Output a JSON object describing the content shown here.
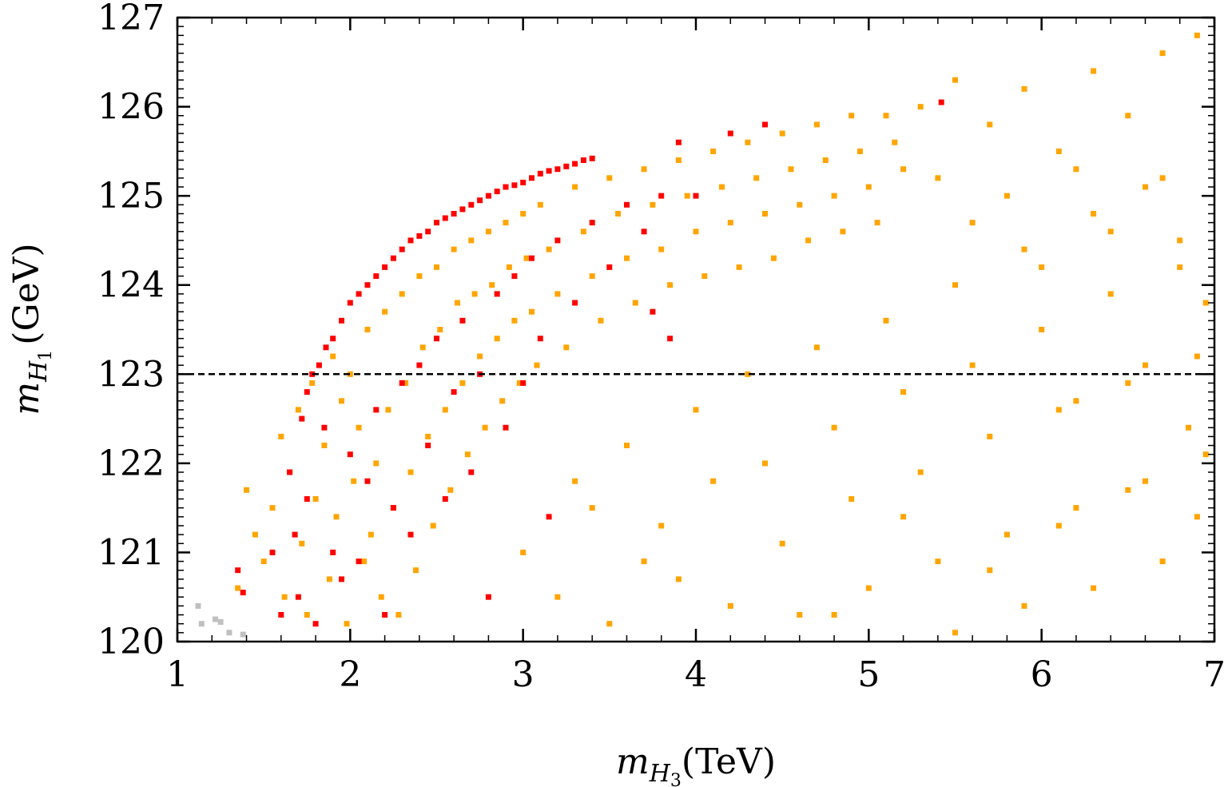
{
  "chart_data": {
    "type": "scatter",
    "title": "",
    "xlabel": {
      "symbol": "m",
      "subscript": "H",
      "subsub": "3",
      "unit": "(TeV)"
    },
    "ylabel": {
      "symbol": "m",
      "subscript": "H",
      "subsub": "1",
      "unit": "(GeV)"
    },
    "xlim": [
      1,
      7
    ],
    "ylim": [
      120,
      127
    ],
    "xticks": [
      "1",
      "2",
      "3",
      "4",
      "5",
      "6",
      "7"
    ],
    "yticks": [
      "120",
      "121",
      "122",
      "123",
      "124",
      "125",
      "126",
      "127"
    ],
    "grid": false,
    "legend": "none",
    "reference_line": {
      "y": 123,
      "style": "dashed",
      "color": "#000000"
    },
    "series": [
      {
        "color": "#c0c0c0",
        "points": [
          [
            1.12,
            120.4
          ],
          [
            1.22,
            120.25
          ],
          [
            1.25,
            120.22
          ],
          [
            1.3,
            120.1
          ],
          [
            1.38,
            120.08
          ],
          [
            1.14,
            120.2
          ]
        ]
      },
      {
        "color": "#ffa500",
        "points": [
          [
            1.35,
            120.6
          ],
          [
            1.4,
            121.7
          ],
          [
            1.45,
            121.2
          ],
          [
            1.5,
            120.9
          ],
          [
            1.55,
            121.5
          ],
          [
            1.6,
            122.3
          ],
          [
            1.62,
            120.5
          ],
          [
            1.65,
            121.9
          ],
          [
            1.7,
            122.6
          ],
          [
            1.72,
            121.1
          ],
          [
            1.75,
            120.3
          ],
          [
            1.78,
            122.9
          ],
          [
            1.8,
            121.6
          ],
          [
            1.85,
            122.2
          ],
          [
            1.88,
            120.7
          ],
          [
            1.9,
            123.2
          ],
          [
            1.92,
            121.4
          ],
          [
            1.95,
            122.7
          ],
          [
            1.98,
            120.2
          ],
          [
            2.0,
            123.0
          ],
          [
            2.02,
            121.8
          ],
          [
            2.05,
            122.4
          ],
          [
            2.08,
            120.9
          ],
          [
            2.1,
            123.5
          ],
          [
            2.12,
            121.2
          ],
          [
            2.15,
            122.0
          ],
          [
            2.18,
            120.5
          ],
          [
            2.2,
            123.7
          ],
          [
            2.22,
            122.6
          ],
          [
            2.25,
            121.5
          ],
          [
            2.28,
            120.3
          ],
          [
            2.3,
            123.9
          ],
          [
            2.32,
            122.9
          ],
          [
            2.35,
            121.9
          ],
          [
            2.38,
            120.8
          ],
          [
            2.4,
            124.1
          ],
          [
            2.42,
            123.3
          ],
          [
            2.45,
            122.3
          ],
          [
            2.48,
            121.3
          ],
          [
            2.5,
            124.2
          ],
          [
            2.52,
            123.5
          ],
          [
            2.55,
            122.6
          ],
          [
            2.58,
            121.7
          ],
          [
            2.6,
            124.4
          ],
          [
            2.62,
            123.8
          ],
          [
            2.65,
            122.9
          ],
          [
            2.68,
            122.1
          ],
          [
            2.7,
            124.5
          ],
          [
            2.72,
            123.9
          ],
          [
            2.75,
            123.2
          ],
          [
            2.78,
            122.4
          ],
          [
            2.8,
            124.6
          ],
          [
            2.82,
            124.0
          ],
          [
            2.85,
            123.4
          ],
          [
            2.88,
            122.7
          ],
          [
            2.9,
            124.7
          ],
          [
            2.92,
            124.2
          ],
          [
            2.95,
            123.6
          ],
          [
            2.98,
            122.9
          ],
          [
            3.0,
            124.8
          ],
          [
            3.02,
            124.3
          ],
          [
            3.05,
            123.7
          ],
          [
            3.08,
            123.1
          ],
          [
            3.1,
            124.9
          ],
          [
            3.15,
            124.4
          ],
          [
            3.2,
            123.9
          ],
          [
            3.25,
            123.3
          ],
          [
            3.3,
            125.1
          ],
          [
            3.35,
            124.6
          ],
          [
            3.4,
            124.1
          ],
          [
            3.45,
            123.6
          ],
          [
            3.5,
            125.2
          ],
          [
            3.55,
            124.8
          ],
          [
            3.6,
            124.3
          ],
          [
            3.65,
            123.8
          ],
          [
            3.7,
            125.3
          ],
          [
            3.75,
            124.9
          ],
          [
            3.8,
            124.4
          ],
          [
            3.85,
            124.0
          ],
          [
            3.9,
            125.4
          ],
          [
            3.95,
            125.0
          ],
          [
            4.0,
            124.6
          ],
          [
            4.05,
            124.1
          ],
          [
            4.1,
            125.5
          ],
          [
            4.15,
            125.1
          ],
          [
            4.2,
            124.7
          ],
          [
            4.25,
            124.2
          ],
          [
            4.3,
            125.6
          ],
          [
            4.35,
            125.2
          ],
          [
            4.4,
            124.8
          ],
          [
            4.45,
            124.3
          ],
          [
            4.5,
            125.7
          ],
          [
            4.55,
            125.3
          ],
          [
            4.6,
            124.9
          ],
          [
            4.65,
            124.5
          ],
          [
            4.7,
            125.8
          ],
          [
            4.75,
            125.4
          ],
          [
            4.8,
            125.0
          ],
          [
            4.85,
            124.6
          ],
          [
            4.9,
            125.9
          ],
          [
            4.95,
            125.5
          ],
          [
            5.0,
            125.1
          ],
          [
            5.05,
            124.7
          ],
          [
            5.1,
            125.9
          ],
          [
            5.15,
            125.6
          ],
          [
            5.2,
            125.3
          ],
          [
            3.0,
            121.0
          ],
          [
            3.2,
            120.5
          ],
          [
            3.4,
            121.5
          ],
          [
            3.5,
            120.2
          ],
          [
            3.6,
            122.2
          ],
          [
            3.8,
            121.3
          ],
          [
            3.9,
            120.7
          ],
          [
            4.0,
            122.6
          ],
          [
            4.1,
            121.8
          ],
          [
            4.2,
            120.4
          ],
          [
            4.3,
            123.0
          ],
          [
            4.4,
            122.0
          ],
          [
            4.5,
            121.1
          ],
          [
            4.6,
            120.3
          ],
          [
            4.7,
            123.3
          ],
          [
            4.8,
            122.4
          ],
          [
            4.9,
            121.6
          ],
          [
            5.0,
            120.6
          ],
          [
            5.1,
            123.6
          ],
          [
            5.2,
            122.8
          ],
          [
            5.3,
            121.9
          ],
          [
            5.4,
            120.9
          ],
          [
            5.5,
            124.0
          ],
          [
            5.6,
            123.1
          ],
          [
            5.7,
            122.3
          ],
          [
            5.8,
            121.2
          ],
          [
            5.9,
            124.4
          ],
          [
            6.0,
            123.5
          ],
          [
            6.1,
            122.6
          ],
          [
            6.2,
            121.5
          ],
          [
            6.3,
            124.8
          ],
          [
            6.4,
            123.9
          ],
          [
            6.5,
            122.9
          ],
          [
            6.6,
            121.8
          ],
          [
            6.7,
            125.2
          ],
          [
            6.8,
            124.2
          ],
          [
            6.9,
            123.2
          ],
          [
            6.95,
            122.1
          ],
          [
            5.3,
            126.0
          ],
          [
            5.5,
            126.3
          ],
          [
            5.7,
            125.8
          ],
          [
            5.9,
            126.2
          ],
          [
            6.1,
            125.5
          ],
          [
            6.3,
            126.4
          ],
          [
            6.5,
            125.9
          ],
          [
            6.7,
            126.6
          ],
          [
            6.9,
            126.8
          ],
          [
            5.4,
            125.2
          ],
          [
            5.6,
            124.7
          ],
          [
            5.8,
            125.0
          ],
          [
            6.0,
            124.2
          ],
          [
            6.2,
            125.3
          ],
          [
            6.4,
            124.6
          ],
          [
            6.6,
            125.1
          ],
          [
            6.8,
            124.5
          ],
          [
            6.95,
            123.8
          ],
          [
            5.5,
            120.1
          ],
          [
            5.7,
            120.8
          ],
          [
            5.9,
            120.4
          ],
          [
            6.1,
            121.3
          ],
          [
            6.3,
            120.6
          ],
          [
            6.5,
            121.7
          ],
          [
            6.7,
            120.9
          ],
          [
            6.9,
            121.4
          ],
          [
            6.2,
            122.7
          ],
          [
            6.6,
            123.1
          ],
          [
            6.85,
            122.4
          ],
          [
            5.2,
            121.4
          ],
          [
            4.8,
            120.3
          ],
          [
            3.7,
            120.9
          ],
          [
            3.3,
            121.8
          ]
        ]
      },
      {
        "color": "#ff0000",
        "points": [
          [
            1.72,
            122.5
          ],
          [
            1.75,
            122.8
          ],
          [
            1.78,
            123.0
          ],
          [
            1.82,
            123.1
          ],
          [
            1.86,
            123.3
          ],
          [
            1.9,
            123.4
          ],
          [
            1.95,
            123.6
          ],
          [
            2.0,
            123.8
          ],
          [
            2.05,
            123.9
          ],
          [
            2.1,
            124.0
          ],
          [
            2.15,
            124.1
          ],
          [
            2.2,
            124.2
          ],
          [
            2.25,
            124.3
          ],
          [
            2.3,
            124.4
          ],
          [
            2.35,
            124.5
          ],
          [
            2.4,
            124.55
          ],
          [
            2.45,
            124.6
          ],
          [
            2.5,
            124.7
          ],
          [
            2.55,
            124.75
          ],
          [
            2.6,
            124.8
          ],
          [
            2.65,
            124.85
          ],
          [
            2.7,
            124.9
          ],
          [
            2.75,
            124.95
          ],
          [
            2.8,
            125.0
          ],
          [
            2.85,
            125.05
          ],
          [
            2.9,
            125.1
          ],
          [
            2.95,
            125.12
          ],
          [
            3.0,
            125.15
          ],
          [
            3.05,
            125.2
          ],
          [
            3.1,
            125.25
          ],
          [
            3.15,
            125.28
          ],
          [
            3.2,
            125.3
          ],
          [
            3.25,
            125.33
          ],
          [
            3.3,
            125.36
          ],
          [
            3.35,
            125.4
          ],
          [
            3.4,
            125.42
          ],
          [
            1.65,
            121.9
          ],
          [
            1.68,
            121.2
          ],
          [
            1.7,
            120.5
          ],
          [
            1.75,
            121.6
          ],
          [
            1.8,
            120.2
          ],
          [
            1.85,
            122.4
          ],
          [
            1.9,
            121.0
          ],
          [
            1.95,
            120.7
          ],
          [
            2.0,
            122.1
          ],
          [
            2.05,
            120.9
          ],
          [
            2.1,
            121.8
          ],
          [
            2.15,
            122.6
          ],
          [
            2.2,
            120.3
          ],
          [
            2.25,
            121.5
          ],
          [
            2.3,
            122.9
          ],
          [
            2.35,
            121.2
          ],
          [
            2.4,
            123.1
          ],
          [
            2.45,
            122.2
          ],
          [
            2.5,
            123.4
          ],
          [
            2.55,
            121.6
          ],
          [
            2.6,
            122.8
          ],
          [
            2.65,
            123.6
          ],
          [
            2.7,
            121.9
          ],
          [
            2.75,
            123.0
          ],
          [
            2.8,
            120.5
          ],
          [
            2.85,
            123.9
          ],
          [
            2.9,
            122.4
          ],
          [
            2.95,
            124.1
          ],
          [
            3.0,
            122.9
          ],
          [
            3.05,
            124.3
          ],
          [
            3.1,
            123.4
          ],
          [
            3.15,
            121.4
          ],
          [
            3.2,
            124.5
          ],
          [
            3.3,
            123.8
          ],
          [
            3.4,
            124.7
          ],
          [
            3.5,
            124.2
          ],
          [
            3.6,
            124.9
          ],
          [
            3.7,
            124.6
          ],
          [
            3.75,
            123.7
          ],
          [
            3.8,
            125.0
          ],
          [
            3.85,
            123.4
          ],
          [
            3.9,
            125.6
          ],
          [
            4.0,
            125.0
          ],
          [
            4.2,
            125.7
          ],
          [
            4.4,
            125.8
          ],
          [
            5.42,
            126.05
          ],
          [
            1.35,
            120.8
          ],
          [
            1.38,
            120.55
          ],
          [
            1.55,
            121.0
          ],
          [
            1.6,
            120.3
          ]
        ]
      }
    ]
  }
}
